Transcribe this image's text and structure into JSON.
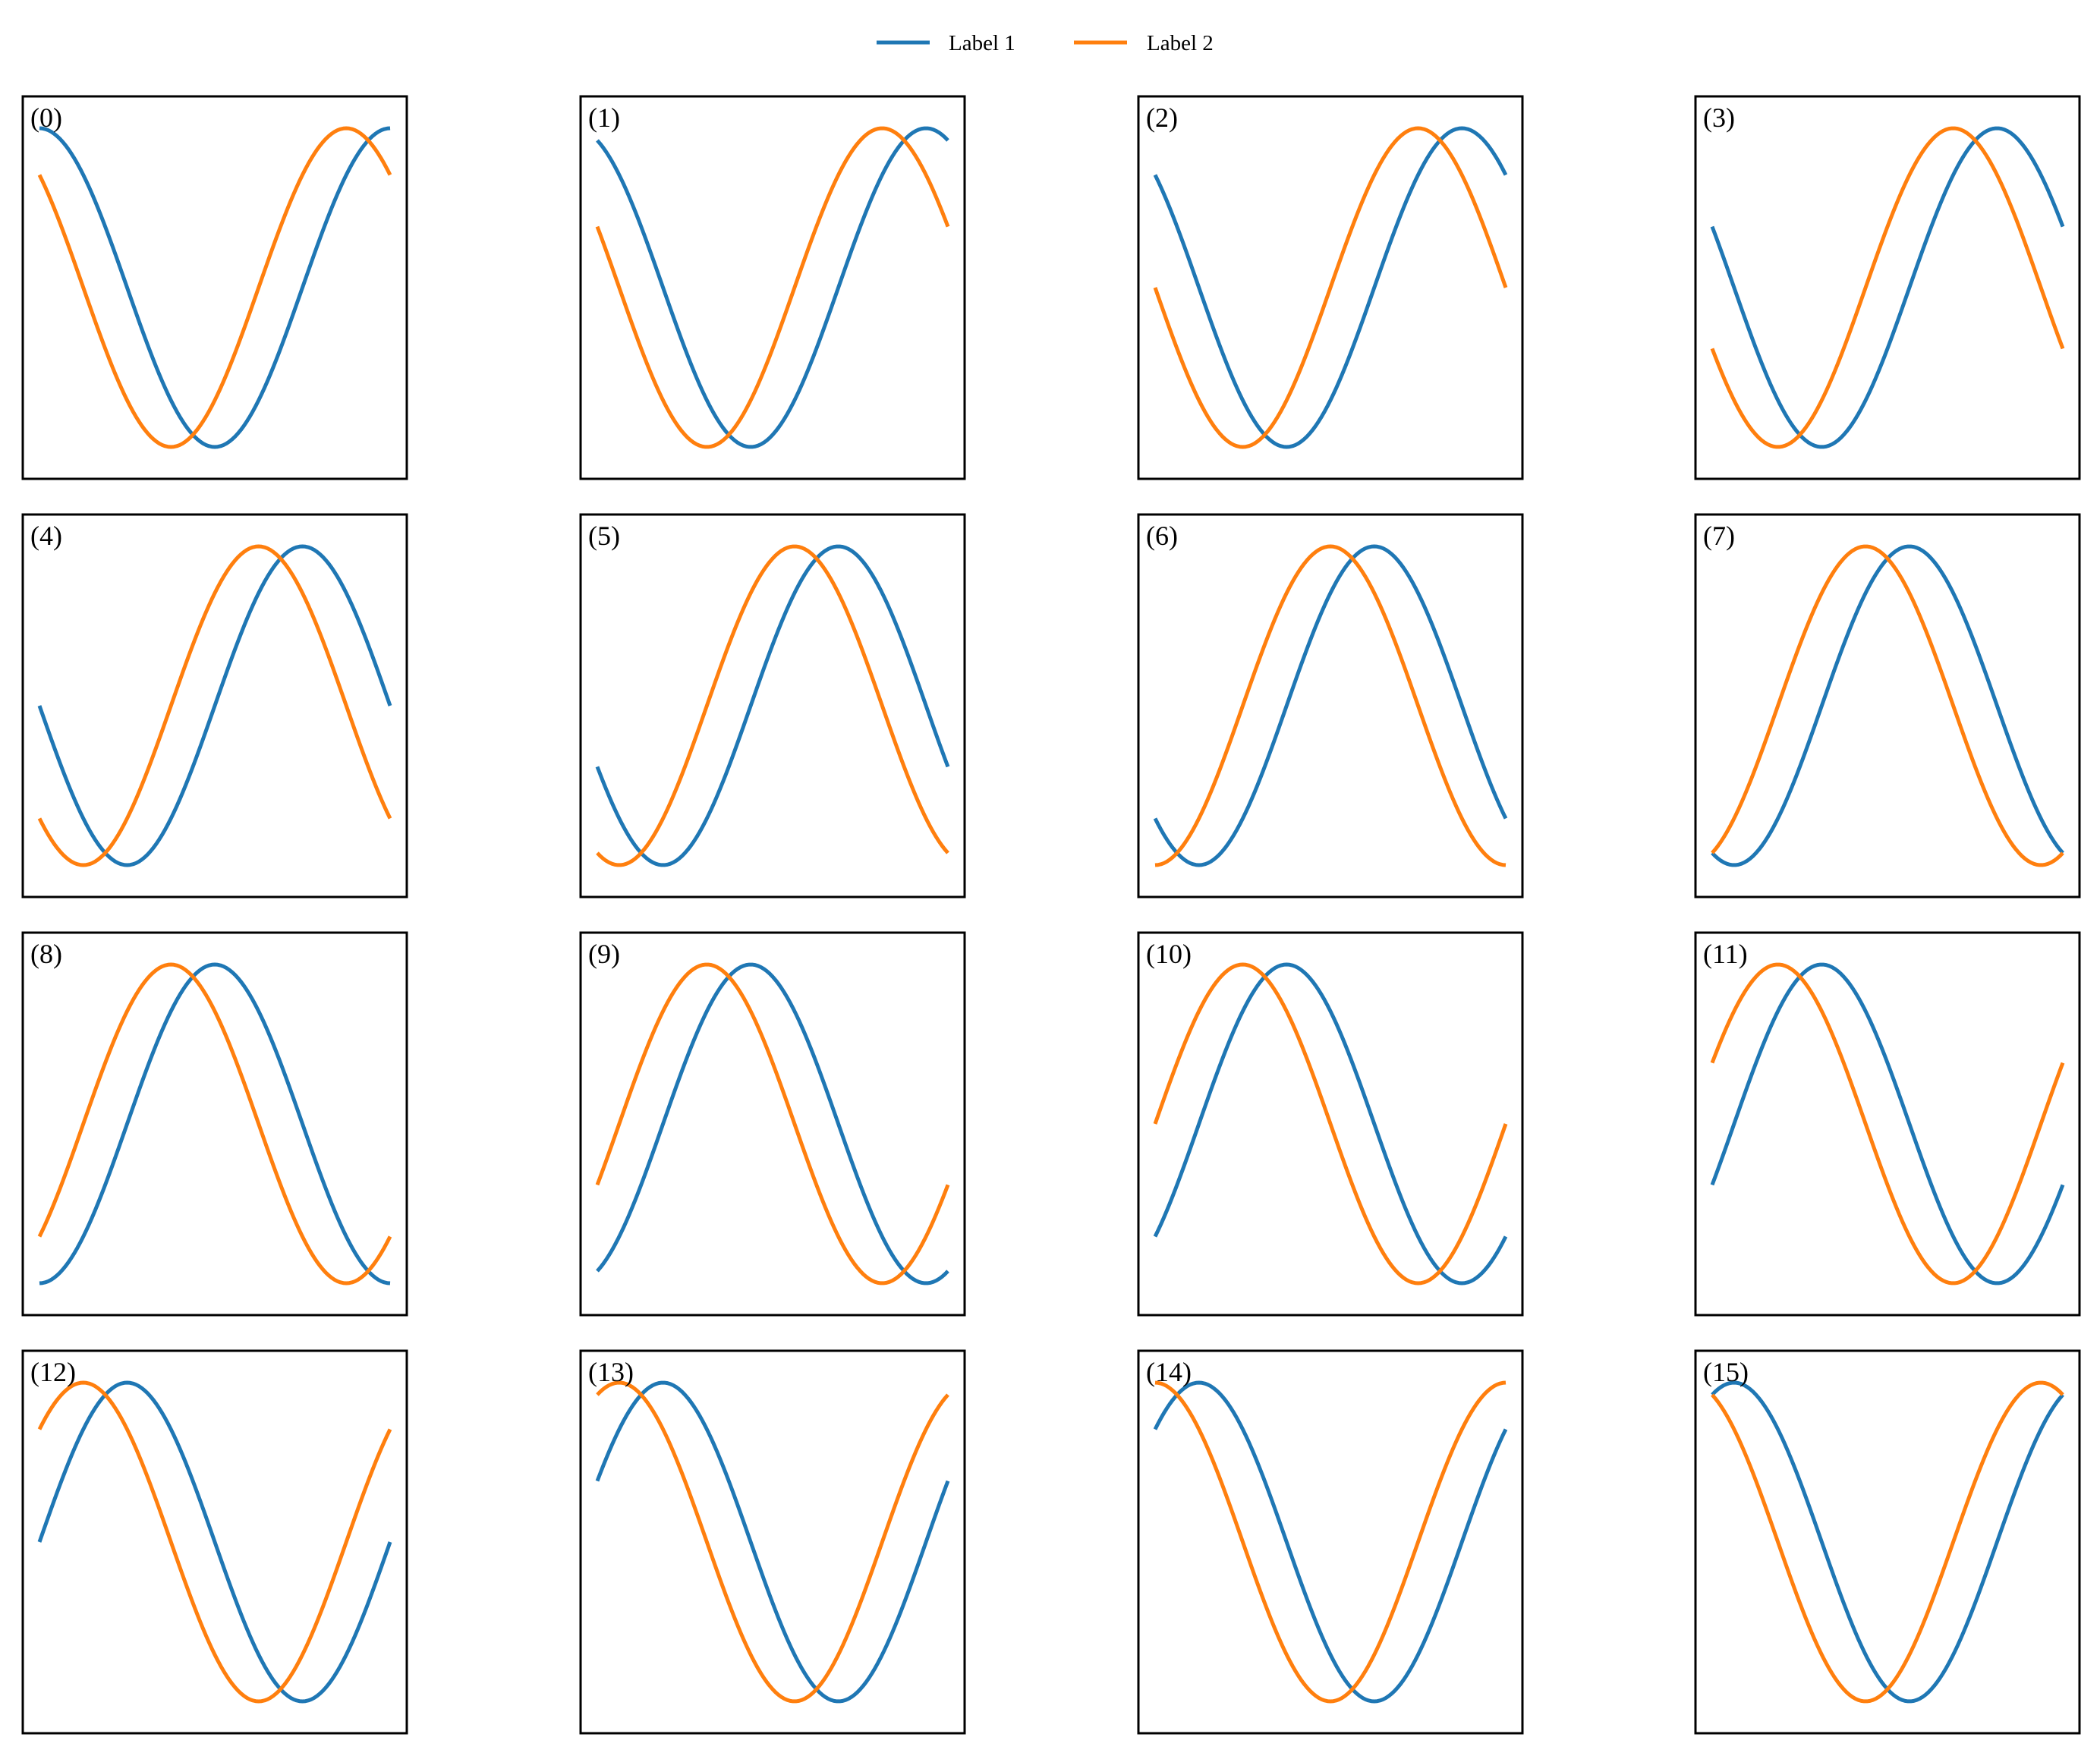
{
  "chart_data": {
    "type": "line",
    "layout": "4x4 grid of small-multiple panels",
    "legend": {
      "placement": "top-center",
      "entries": [
        {
          "label": "Label 1",
          "color": "#1f77b4"
        },
        {
          "label": "Label 2",
          "color": "#ff7f0e"
        }
      ]
    },
    "axes_visible": false,
    "grid": false,
    "x": [
      0,
      6.2832
    ],
    "ylim": [
      -1.1,
      1.1
    ],
    "series_formula": {
      "label_1": "cos(x + i*pi/8)",
      "label_2": "cos(x + i*pi/8 + pi/4)"
    },
    "panels": [
      {
        "label": "(0)",
        "phase": 0.0
      },
      {
        "label": "(1)",
        "phase": 0.3927
      },
      {
        "label": "(2)",
        "phase": 0.7854
      },
      {
        "label": "(3)",
        "phase": 1.1781
      },
      {
        "label": "(4)",
        "phase": 1.5708
      },
      {
        "label": "(5)",
        "phase": 1.9635
      },
      {
        "label": "(6)",
        "phase": 2.3562
      },
      {
        "label": "(7)",
        "phase": 2.7489
      },
      {
        "label": "(8)",
        "phase": 3.1416
      },
      {
        "label": "(9)",
        "phase": 3.5343
      },
      {
        "label": "(10)",
        "phase": 3.927
      },
      {
        "label": "(11)",
        "phase": 4.3197
      },
      {
        "label": "(12)",
        "phase": 4.7124
      },
      {
        "label": "(13)",
        "phase": 5.1051
      },
      {
        "label": "(14)",
        "phase": 5.4978
      },
      {
        "label": "(15)",
        "phase": 5.8905
      }
    ],
    "series": [
      {
        "name": "Label 1",
        "color": "#1f77b4",
        "phase_offset": 0.0
      },
      {
        "name": "Label 2",
        "color": "#ff7f0e",
        "phase_offset": 0.7854
      }
    ]
  }
}
